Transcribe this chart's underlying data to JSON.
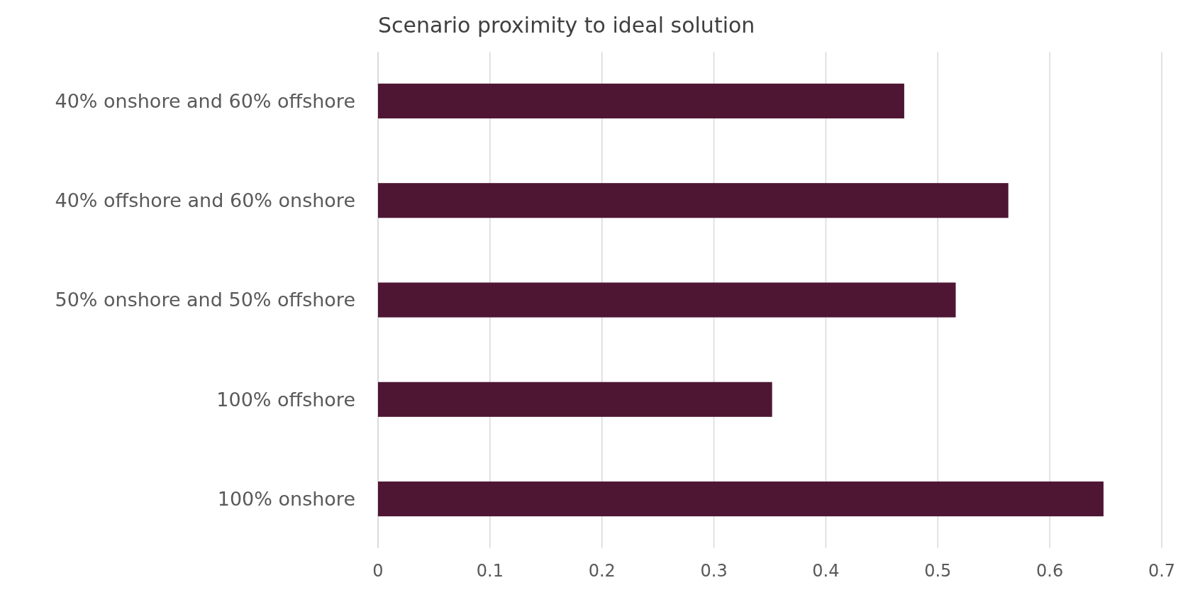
{
  "chart_data": {
    "type": "bar",
    "orientation": "horizontal",
    "title": "Scenario proximity to ideal solution",
    "categories": [
      "40% onshore and 60% offshore",
      "40% offshore and 60% onshore",
      "50% onshore and 50% offshore",
      "100% offshore",
      "100% onshore"
    ],
    "values": [
      0.47,
      0.563,
      0.516,
      0.352,
      0.648
    ],
    "color": "#4f1634",
    "xlim": [
      0,
      0.7
    ],
    "xticks": [
      0,
      0.1,
      0.2,
      0.3,
      0.4,
      0.5,
      0.6,
      0.7
    ],
    "grid": "x"
  }
}
